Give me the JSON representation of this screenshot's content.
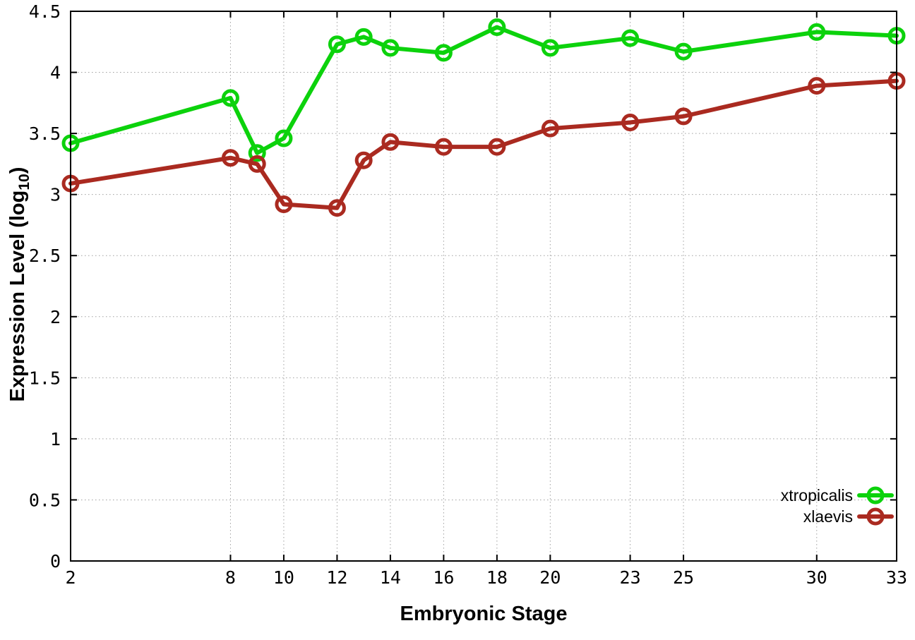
{
  "page": {
    "background": "#ffffff"
  },
  "chart_data": {
    "type": "line",
    "title": "",
    "xlabel": "Embryonic Stage",
    "ylabel": "Expression Level (log10)",
    "ylabel_parts": {
      "main": "Expression Level (log",
      "sub": "10",
      "end": ")"
    },
    "x": [
      2,
      8,
      9,
      10,
      12,
      13,
      14,
      16,
      18,
      20,
      23,
      25,
      30,
      33
    ],
    "xlim": [
      2,
      33
    ],
    "ylim": [
      0,
      4.5
    ],
    "x_ticks": [
      2,
      8,
      10,
      12,
      14,
      16,
      18,
      20,
      23,
      25,
      30,
      33
    ],
    "x_tick_labels": [
      "2",
      "8",
      "10",
      "12",
      "14",
      "16",
      "18",
      "20",
      "23",
      "25",
      "30",
      "33"
    ],
    "y_ticks": [
      0,
      0.5,
      1,
      1.5,
      2,
      2.5,
      3,
      3.5,
      4,
      4.5
    ],
    "y_tick_labels": [
      "0",
      "0.5",
      "1",
      "1.5",
      "2",
      "2.5",
      "3",
      "3.5",
      "4",
      "4.5"
    ],
    "grid": true,
    "grid_style": "dotted",
    "grid_color": "#a0a0a0",
    "axis_color": "#000000",
    "legend": {
      "position": "inside-bottom-right",
      "entries": [
        "xtropicalis",
        "xlaevis"
      ]
    },
    "series": [
      {
        "name": "xtropicalis",
        "color": "#0cd20c",
        "marker": "open-circle",
        "values": [
          3.42,
          3.79,
          3.34,
          3.46,
          4.23,
          4.29,
          4.2,
          4.16,
          4.37,
          4.2,
          4.28,
          4.17,
          4.33,
          4.3
        ]
      },
      {
        "name": "xlaevis",
        "color": "#aa2a20",
        "marker": "open-circle",
        "values": [
          3.09,
          3.3,
          3.25,
          2.92,
          2.89,
          3.28,
          3.43,
          3.39,
          3.39,
          3.54,
          3.59,
          3.64,
          3.89,
          3.93
        ]
      }
    ]
  }
}
